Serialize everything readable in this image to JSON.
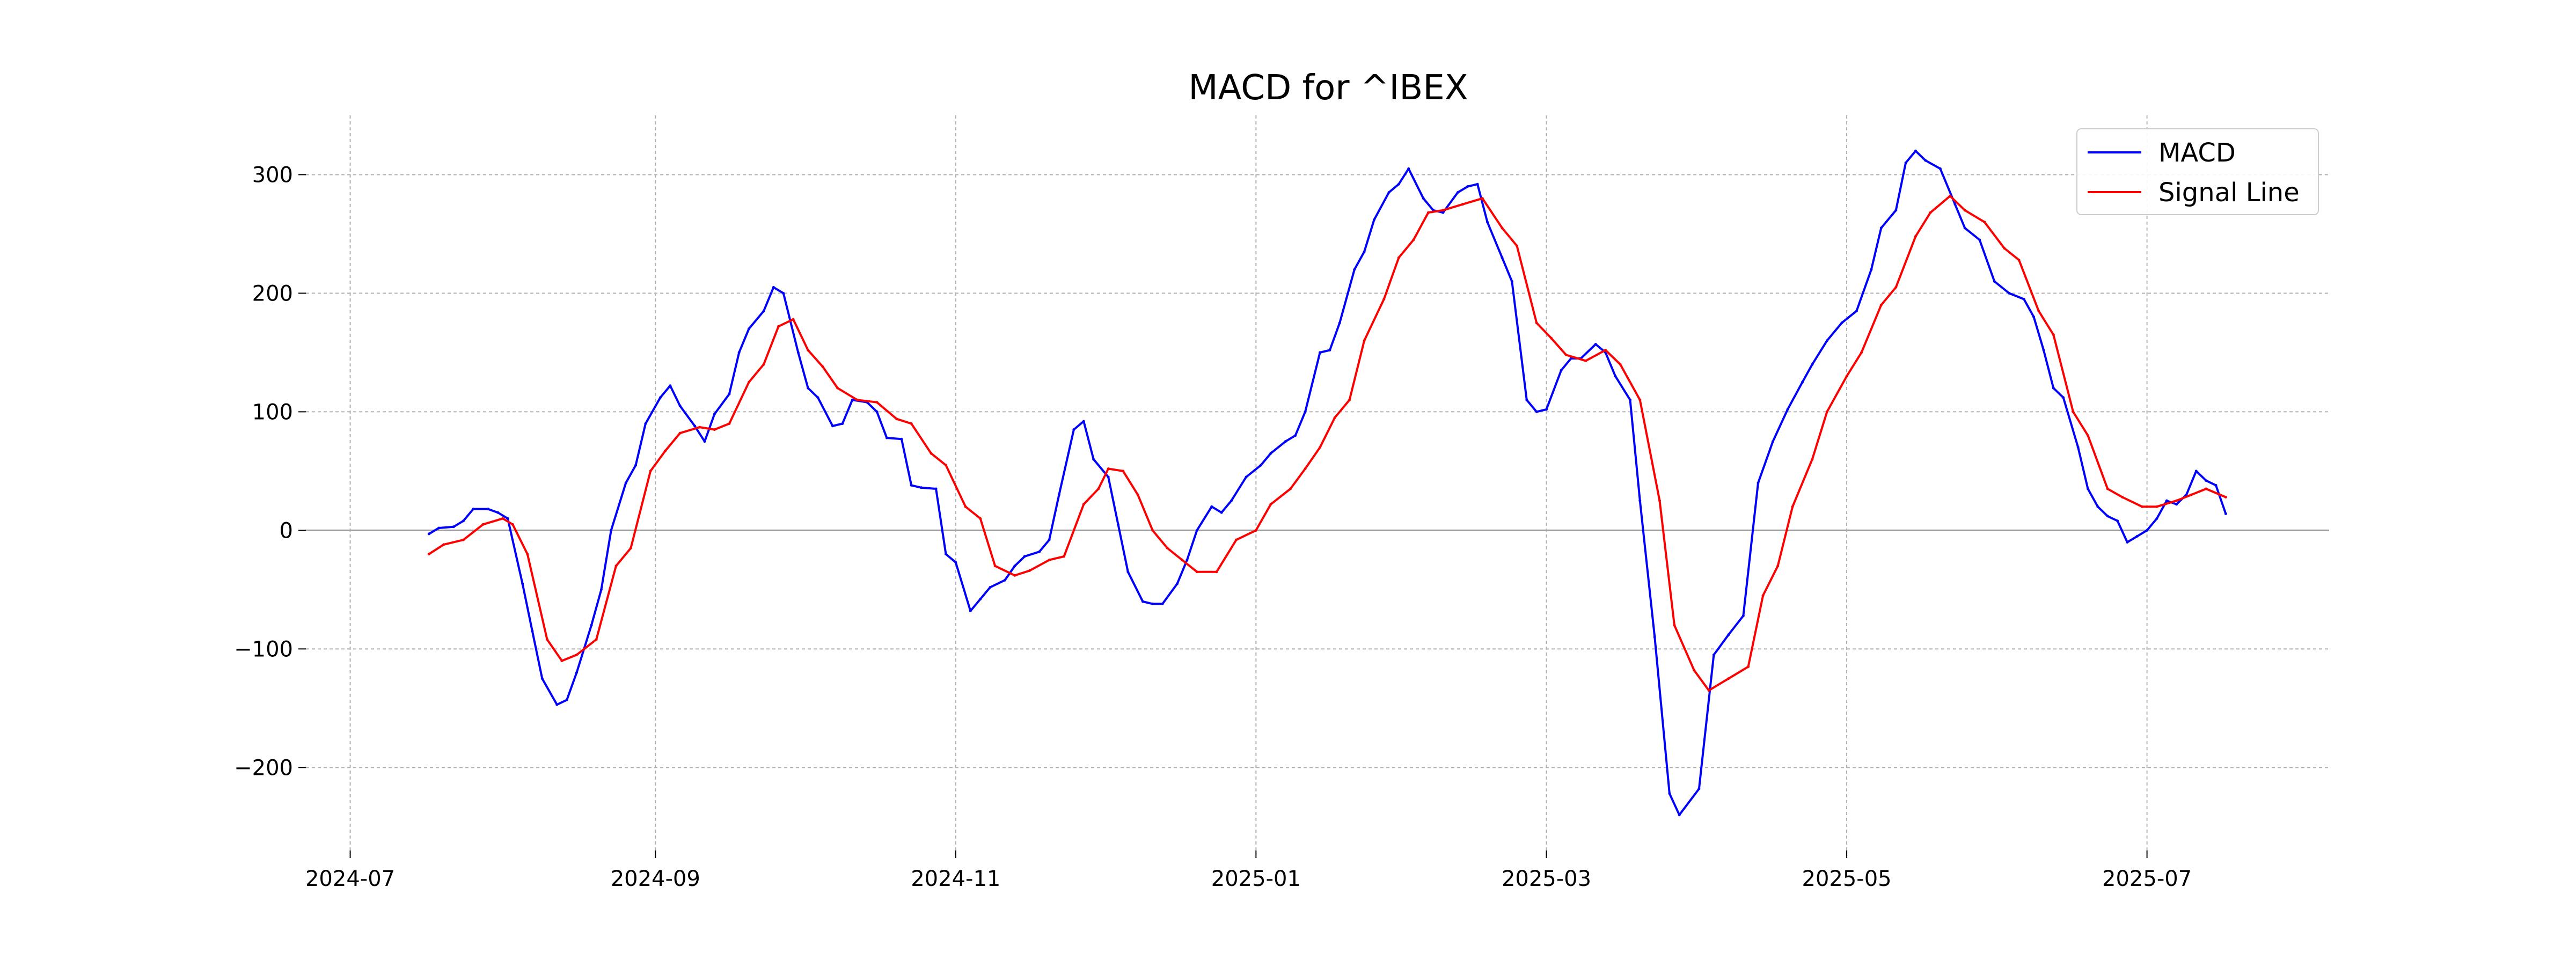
{
  "chart_data": {
    "type": "line",
    "title": "MACD for ^IBEX",
    "xlabel": "",
    "ylabel": "",
    "x_ticks": [
      "2024-07",
      "2024-09",
      "2024-11",
      "2025-01",
      "2025-03",
      "2025-05",
      "2025-07"
    ],
    "y_ticks": [
      -200,
      -100,
      0,
      100,
      200,
      300
    ],
    "y_tick_labels": [
      "−200",
      "−100",
      "0",
      "100",
      "200",
      "300"
    ],
    "xlim": [
      "2024-06-22",
      "2025-08-07"
    ],
    "ylim": [
      -270,
      350
    ],
    "grid": true,
    "zero_line": 0,
    "legend_position": "top-right",
    "series": [
      {
        "name": "MACD",
        "color": "#0000ff",
        "points": [
          [
            "2024-07-17",
            -3
          ],
          [
            "2024-07-19",
            2
          ],
          [
            "2024-07-22",
            3
          ],
          [
            "2024-07-24",
            8
          ],
          [
            "2024-07-26",
            18
          ],
          [
            "2024-07-29",
            18
          ],
          [
            "2024-07-31",
            15
          ],
          [
            "2024-08-02",
            10
          ],
          [
            "2024-08-05",
            -45
          ],
          [
            "2024-08-07",
            -85
          ],
          [
            "2024-08-09",
            -125
          ],
          [
            "2024-08-12",
            -147
          ],
          [
            "2024-08-14",
            -143
          ],
          [
            "2024-08-16",
            -120
          ],
          [
            "2024-08-19",
            -80
          ],
          [
            "2024-08-21",
            -50
          ],
          [
            "2024-08-23",
            0
          ],
          [
            "2024-08-26",
            40
          ],
          [
            "2024-08-28",
            55
          ],
          [
            "2024-08-30",
            90
          ],
          [
            "2024-09-02",
            112
          ],
          [
            "2024-09-04",
            122
          ],
          [
            "2024-09-06",
            105
          ],
          [
            "2024-09-09",
            88
          ],
          [
            "2024-09-11",
            75
          ],
          [
            "2024-09-13",
            98
          ],
          [
            "2024-09-16",
            115
          ],
          [
            "2024-09-18",
            150
          ],
          [
            "2024-09-20",
            170
          ],
          [
            "2024-09-23",
            185
          ],
          [
            "2024-09-25",
            205
          ],
          [
            "2024-09-27",
            200
          ],
          [
            "2024-09-30",
            150
          ],
          [
            "2024-10-02",
            120
          ],
          [
            "2024-10-04",
            112
          ],
          [
            "2024-10-07",
            88
          ],
          [
            "2024-10-09",
            90
          ],
          [
            "2024-10-11",
            110
          ],
          [
            "2024-10-14",
            108
          ],
          [
            "2024-10-16",
            100
          ],
          [
            "2024-10-18",
            78
          ],
          [
            "2024-10-21",
            77
          ],
          [
            "2024-10-23",
            38
          ],
          [
            "2024-10-25",
            36
          ],
          [
            "2024-10-28",
            35
          ],
          [
            "2024-10-30",
            -20
          ],
          [
            "2024-11-01",
            -27
          ],
          [
            "2024-11-04",
            -68
          ],
          [
            "2024-11-06",
            -58
          ],
          [
            "2024-11-08",
            -48
          ],
          [
            "2024-11-11",
            -42
          ],
          [
            "2024-11-13",
            -30
          ],
          [
            "2024-11-15",
            -22
          ],
          [
            "2024-11-18",
            -18
          ],
          [
            "2024-11-20",
            -8
          ],
          [
            "2024-11-22",
            30
          ],
          [
            "2024-11-25",
            85
          ],
          [
            "2024-11-27",
            92
          ],
          [
            "2024-11-29",
            60
          ],
          [
            "2024-12-02",
            45
          ],
          [
            "2024-12-04",
            5
          ],
          [
            "2024-12-06",
            -35
          ],
          [
            "2024-12-09",
            -60
          ],
          [
            "2024-12-11",
            -62
          ],
          [
            "2024-12-13",
            -62
          ],
          [
            "2024-12-16",
            -45
          ],
          [
            "2024-12-18",
            -25
          ],
          [
            "2024-12-20",
            0
          ],
          [
            "2024-12-23",
            20
          ],
          [
            "2024-12-25",
            15
          ],
          [
            "2024-12-27",
            25
          ],
          [
            "2024-12-30",
            45
          ],
          [
            "2025-01-02",
            55
          ],
          [
            "2025-01-04",
            65
          ],
          [
            "2025-01-07",
            75
          ],
          [
            "2025-01-09",
            80
          ],
          [
            "2025-01-11",
            100
          ],
          [
            "2025-01-14",
            150
          ],
          [
            "2025-01-16",
            152
          ],
          [
            "2025-01-18",
            175
          ],
          [
            "2025-01-21",
            220
          ],
          [
            "2025-01-23",
            235
          ],
          [
            "2025-01-25",
            262
          ],
          [
            "2025-01-28",
            285
          ],
          [
            "2025-01-30",
            292
          ],
          [
            "2025-02-01",
            305
          ],
          [
            "2025-02-04",
            280
          ],
          [
            "2025-02-06",
            270
          ],
          [
            "2025-02-08",
            268
          ],
          [
            "2025-02-11",
            285
          ],
          [
            "2025-02-13",
            290
          ],
          [
            "2025-02-15",
            292
          ],
          [
            "2025-02-17",
            260
          ],
          [
            "2025-02-20",
            230
          ],
          [
            "2025-02-22",
            210
          ],
          [
            "2025-02-25",
            110
          ],
          [
            "2025-02-27",
            100
          ],
          [
            "2025-03-01",
            102
          ],
          [
            "2025-03-04",
            135
          ],
          [
            "2025-03-06",
            145
          ],
          [
            "2025-03-08",
            145
          ],
          [
            "2025-03-11",
            157
          ],
          [
            "2025-03-13",
            150
          ],
          [
            "2025-03-15",
            130
          ],
          [
            "2025-03-18",
            110
          ],
          [
            "2025-03-20",
            25
          ],
          [
            "2025-03-23",
            -90
          ],
          [
            "2025-03-26",
            -222
          ],
          [
            "2025-03-28",
            -240
          ],
          [
            "2025-04-01",
            -218
          ],
          [
            "2025-04-04",
            -105
          ],
          [
            "2025-04-07",
            -88
          ],
          [
            "2025-04-10",
            -72
          ],
          [
            "2025-04-13",
            40
          ],
          [
            "2025-04-16",
            75
          ],
          [
            "2025-04-19",
            102
          ],
          [
            "2025-04-22",
            125
          ],
          [
            "2025-04-24",
            140
          ],
          [
            "2025-04-27",
            160
          ],
          [
            "2025-04-30",
            175
          ],
          [
            "2025-05-03",
            185
          ],
          [
            "2025-05-06",
            220
          ],
          [
            "2025-05-08",
            255
          ],
          [
            "2025-05-11",
            270
          ],
          [
            "2025-05-13",
            310
          ],
          [
            "2025-05-15",
            320
          ],
          [
            "2025-05-17",
            312
          ],
          [
            "2025-05-20",
            305
          ],
          [
            "2025-05-23",
            275
          ],
          [
            "2025-05-25",
            255
          ],
          [
            "2025-05-28",
            245
          ],
          [
            "2025-05-31",
            210
          ],
          [
            "2025-06-03",
            200
          ],
          [
            "2025-06-06",
            195
          ],
          [
            "2025-06-08",
            180
          ],
          [
            "2025-06-10",
            152
          ],
          [
            "2025-06-12",
            120
          ],
          [
            "2025-06-14",
            112
          ],
          [
            "2025-06-17",
            70
          ],
          [
            "2025-06-19",
            35
          ],
          [
            "2025-06-21",
            20
          ],
          [
            "2025-06-23",
            12
          ],
          [
            "2025-06-25",
            8
          ],
          [
            "2025-06-27",
            -10
          ],
          [
            "2025-06-29",
            -5
          ],
          [
            "2025-07-01",
            0
          ],
          [
            "2025-07-03",
            10
          ],
          [
            "2025-07-05",
            25
          ],
          [
            "2025-07-07",
            22
          ],
          [
            "2025-07-09",
            30
          ],
          [
            "2025-07-11",
            50
          ],
          [
            "2025-07-13",
            42
          ],
          [
            "2025-07-15",
            38
          ],
          [
            "2025-07-17",
            14
          ]
        ]
      },
      {
        "name": "Signal Line",
        "color": "#ff0000",
        "points": [
          [
            "2024-07-17",
            -20
          ],
          [
            "2024-07-20",
            -12
          ],
          [
            "2024-07-24",
            -8
          ],
          [
            "2024-07-28",
            5
          ],
          [
            "2024-08-01",
            10
          ],
          [
            "2024-08-03",
            5
          ],
          [
            "2024-08-06",
            -20
          ],
          [
            "2024-08-10",
            -92
          ],
          [
            "2024-08-13",
            -110
          ],
          [
            "2024-08-16",
            -105
          ],
          [
            "2024-08-20",
            -92
          ],
          [
            "2024-08-24",
            -30
          ],
          [
            "2024-08-27",
            -15
          ],
          [
            "2024-08-31",
            50
          ],
          [
            "2024-09-03",
            67
          ],
          [
            "2024-09-06",
            82
          ],
          [
            "2024-09-10",
            87
          ],
          [
            "2024-09-13",
            85
          ],
          [
            "2024-09-16",
            90
          ],
          [
            "2024-09-20",
            125
          ],
          [
            "2024-09-23",
            140
          ],
          [
            "2024-09-26",
            172
          ],
          [
            "2024-09-29",
            178
          ],
          [
            "2024-10-02",
            152
          ],
          [
            "2024-10-05",
            138
          ],
          [
            "2024-10-08",
            120
          ],
          [
            "2024-10-12",
            110
          ],
          [
            "2024-10-16",
            108
          ],
          [
            "2024-10-20",
            94
          ],
          [
            "2024-10-23",
            90
          ],
          [
            "2024-10-27",
            65
          ],
          [
            "2024-10-30",
            55
          ],
          [
            "2024-11-03",
            20
          ],
          [
            "2024-11-06",
            10
          ],
          [
            "2024-11-09",
            -30
          ],
          [
            "2024-11-13",
            -38
          ],
          [
            "2024-11-16",
            -34
          ],
          [
            "2024-11-20",
            -25
          ],
          [
            "2024-11-23",
            -22
          ],
          [
            "2024-11-27",
            22
          ],
          [
            "2024-11-30",
            35
          ],
          [
            "2024-12-02",
            52
          ],
          [
            "2024-12-05",
            50
          ],
          [
            "2024-12-08",
            30
          ],
          [
            "2024-12-11",
            0
          ],
          [
            "2024-12-14",
            -15
          ],
          [
            "2024-12-17",
            -25
          ],
          [
            "2024-12-20",
            -35
          ],
          [
            "2024-12-24",
            -35
          ],
          [
            "2024-12-28",
            -8
          ],
          [
            "2025-01-01",
            0
          ],
          [
            "2025-01-04",
            22
          ],
          [
            "2025-01-08",
            35
          ],
          [
            "2025-01-11",
            52
          ],
          [
            "2025-01-14",
            70
          ],
          [
            "2025-01-17",
            95
          ],
          [
            "2025-01-20",
            110
          ],
          [
            "2025-01-23",
            160
          ],
          [
            "2025-01-27",
            195
          ],
          [
            "2025-01-30",
            230
          ],
          [
            "2025-02-02",
            245
          ],
          [
            "2025-02-05",
            268
          ],
          [
            "2025-02-08",
            270
          ],
          [
            "2025-02-12",
            275
          ],
          [
            "2025-02-16",
            280
          ],
          [
            "2025-02-20",
            255
          ],
          [
            "2025-02-23",
            240
          ],
          [
            "2025-02-27",
            175
          ],
          [
            "2025-03-02",
            162
          ],
          [
            "2025-03-05",
            148
          ],
          [
            "2025-03-09",
            143
          ],
          [
            "2025-03-13",
            152
          ],
          [
            "2025-03-16",
            140
          ],
          [
            "2025-03-20",
            110
          ],
          [
            "2025-03-24",
            25
          ],
          [
            "2025-03-27",
            -80
          ],
          [
            "2025-03-31",
            -118
          ],
          [
            "2025-04-03",
            -135
          ],
          [
            "2025-04-07",
            -125
          ],
          [
            "2025-04-11",
            -115
          ],
          [
            "2025-04-14",
            -55
          ],
          [
            "2025-04-17",
            -30
          ],
          [
            "2025-04-20",
            20
          ],
          [
            "2025-04-24",
            60
          ],
          [
            "2025-04-27",
            100
          ],
          [
            "2025-05-01",
            130
          ],
          [
            "2025-05-04",
            150
          ],
          [
            "2025-05-08",
            190
          ],
          [
            "2025-05-11",
            205
          ],
          [
            "2025-05-15",
            248
          ],
          [
            "2025-05-18",
            268
          ],
          [
            "2025-05-22",
            282
          ],
          [
            "2025-05-25",
            270
          ],
          [
            "2025-05-29",
            260
          ],
          [
            "2025-06-02",
            238
          ],
          [
            "2025-06-05",
            228
          ],
          [
            "2025-06-09",
            185
          ],
          [
            "2025-06-12",
            165
          ],
          [
            "2025-06-16",
            100
          ],
          [
            "2025-06-19",
            80
          ],
          [
            "2025-06-23",
            35
          ],
          [
            "2025-06-26",
            28
          ],
          [
            "2025-06-30",
            20
          ],
          [
            "2025-07-03",
            20
          ],
          [
            "2025-07-07",
            25
          ],
          [
            "2025-07-10",
            30
          ],
          [
            "2025-07-13",
            35
          ],
          [
            "2025-07-17",
            28
          ]
        ]
      }
    ]
  }
}
